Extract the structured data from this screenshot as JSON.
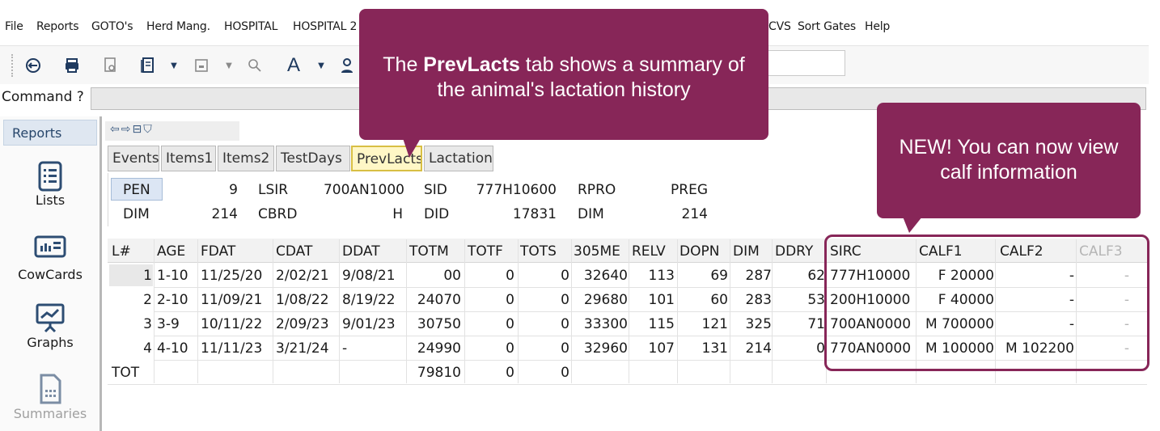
{
  "menu": [
    "File",
    "Reports",
    "GOTO's",
    "Herd Mang.",
    "HOSPITAL",
    "HOSPITAL 2",
    "CVS",
    "Sort Gates",
    "Help"
  ],
  "command": {
    "label": "Command ?"
  },
  "left_nav": {
    "title": "Reports",
    "items": [
      {
        "label": "Lists",
        "icon": "list-icon"
      },
      {
        "label": "CowCards",
        "icon": "cowcard-icon"
      },
      {
        "label": "Graphs",
        "icon": "graph-icon"
      },
      {
        "label": "Summaries",
        "icon": "summary-icon"
      }
    ]
  },
  "tabs": [
    "Events",
    "Items1",
    "Items2",
    "TestDays",
    "PrevLacts",
    "Lactation"
  ],
  "active_tab": "PrevLacts",
  "summary": {
    "row1": {
      "k1": "PEN",
      "v1": "9",
      "k2": "LSIR",
      "v2": "700AN1000",
      "k3": "SID",
      "v3": "777H10600",
      "k4": "RPRO",
      "v4": "PREG"
    },
    "row2": {
      "k1": "DIM",
      "v1": "214",
      "k2": "CBRD",
      "v2": "H",
      "k3": "DID",
      "v3": "17831",
      "k4": "DIM",
      "v4": "214"
    }
  },
  "grid": {
    "headers": [
      "L#",
      "AGE",
      "FDAT",
      "CDAT",
      "DDAT",
      "TOTM",
      "TOTF",
      "TOTS",
      "305ME",
      "RELV",
      "DOPN",
      "DIM",
      "DDRY",
      "SIRC",
      "CALF1",
      "CALF2",
      "CALF3"
    ],
    "rows": [
      [
        "1",
        "1-10",
        "11/25/20",
        "2/02/21",
        "9/08/21",
        "00",
        "0",
        "0",
        "32640",
        "113",
        "69",
        "287",
        "62",
        "777H10000",
        "F 20000",
        "-",
        "-"
      ],
      [
        "2",
        "2-10",
        "11/09/21",
        "1/08/22",
        "8/19/22",
        "24070",
        "0",
        "0",
        "29680",
        "101",
        "60",
        "283",
        "53",
        "200H10000",
        "F 40000",
        "-",
        "-"
      ],
      [
        "3",
        "3-9",
        "10/11/22",
        "2/09/23",
        "9/01/23",
        "30750",
        "0",
        "0",
        "33300",
        "115",
        "121",
        "325",
        "71",
        "700AN0000",
        "M 700000",
        "-",
        "-"
      ],
      [
        "4",
        "4-10",
        "11/11/23",
        "3/21/24",
        "-",
        "24990",
        "0",
        "0",
        "32960",
        "107",
        "131",
        "214",
        "0",
        "770AN0000",
        "M 100000",
        "M 102200",
        "-"
      ]
    ],
    "total": {
      "label": "TOT",
      "totm": "79810",
      "totf": "0",
      "tots": "0"
    }
  },
  "callouts": {
    "prevlacts": {
      "pre": "The ",
      "bold": "PrevLacts",
      "post": " tab shows a summary of",
      "line2": "the animal's lactation history"
    },
    "calf": {
      "line1": "NEW! You can now view",
      "line2": "calf information"
    }
  },
  "colors": {
    "callout": "#872658",
    "active_tab": "#fff7c6",
    "active_tab_border": "#d8bf44"
  }
}
